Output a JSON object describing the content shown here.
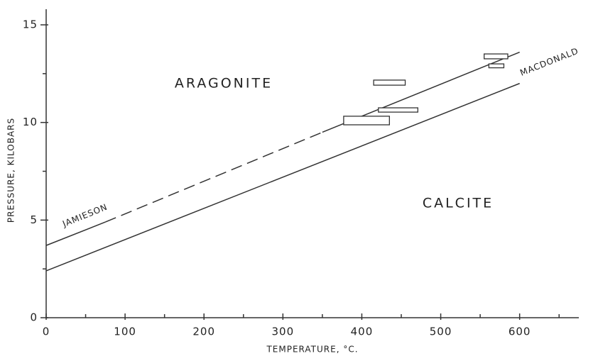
{
  "chart_data": {
    "type": "line",
    "xlabel": "TEMPERATURE, °C.",
    "ylabel": "PRESSURE, KILOBARS",
    "xlim": [
      0,
      675
    ],
    "ylim": [
      0,
      15.8
    ],
    "xticks": [
      0,
      100,
      200,
      300,
      400,
      500,
      600
    ],
    "x_minor_ticks": [
      50,
      150,
      250,
      350,
      450,
      550,
      650
    ],
    "yticks": [
      0,
      5,
      10,
      15
    ],
    "y_minor_ticks": [
      2.5,
      7.5,
      12.5
    ],
    "color": "#333333",
    "series": [
      {
        "name": "JAMIESON",
        "x": [
          0,
          75,
          350,
          600
        ],
        "values": [
          3.7,
          4.9,
          9.5,
          13.6
        ],
        "segment_styles": [
          "solid",
          "dashed",
          "solid"
        ]
      },
      {
        "name": "MACDONALD",
        "x": [
          0,
          600
        ],
        "values": [
          2.4,
          12.0
        ],
        "segment_styles": [
          "solid"
        ]
      }
    ],
    "boxes": [
      {
        "x": [
          555,
          585
        ],
        "y": [
          13.26,
          13.51
        ]
      },
      {
        "x": [
          561,
          580
        ],
        "y": [
          12.8,
          13.0
        ]
      },
      {
        "x": [
          415,
          455
        ],
        "y": [
          11.91,
          12.17
        ]
      },
      {
        "x": [
          421,
          471
        ],
        "y": [
          10.53,
          10.75
        ]
      },
      {
        "x": [
          377,
          435
        ],
        "y": [
          9.88,
          10.32
        ]
      }
    ],
    "annotations": [
      "ARAGONITE",
      "CALCITE"
    ]
  }
}
